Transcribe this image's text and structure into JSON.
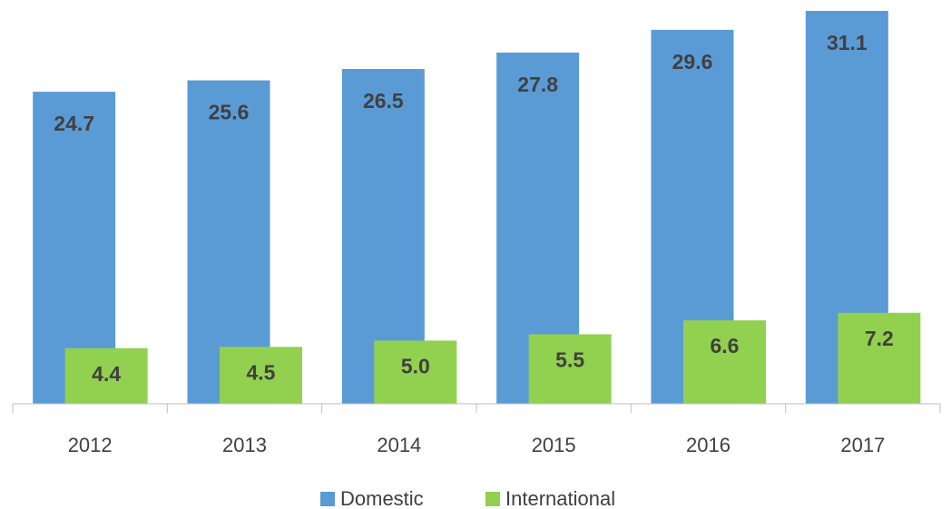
{
  "chart_data": {
    "type": "bar",
    "categories": [
      "2012",
      "2013",
      "2014",
      "2015",
      "2016",
      "2017"
    ],
    "series": [
      {
        "name": "Domestic",
        "color": "#5b9bd5",
        "values": [
          24.7,
          25.6,
          26.5,
          27.8,
          29.6,
          31.1
        ]
      },
      {
        "name": "International",
        "color": "#92d050",
        "values": [
          4.4,
          4.5,
          5.0,
          5.5,
          6.6,
          7.2
        ],
        "value_labels": [
          "4.4",
          "4.5",
          "5.0",
          "5.5",
          "6.6",
          "7.2"
        ]
      }
    ]
  }
}
